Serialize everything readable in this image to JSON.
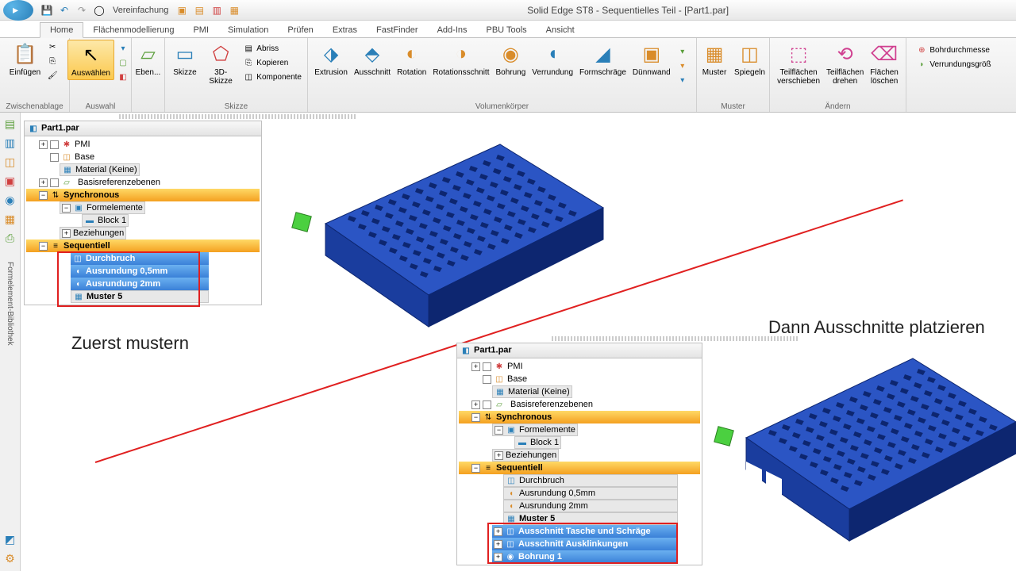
{
  "title": "Solid Edge ST8 - Sequentielles Teil - [Part1.par]",
  "qat": {
    "vereinfachung": "Vereinfachung"
  },
  "tabs": [
    "Home",
    "Flächenmodellierung",
    "PMI",
    "Simulation",
    "Prüfen",
    "Extras",
    "FastFinder",
    "Add-Ins",
    "PBU Tools",
    "Ansicht"
  ],
  "ribbon": {
    "einfuegen": "Einfügen",
    "zwischenablage": "Zwischenablage",
    "auswaehlen": "Auswählen",
    "auswahl": "Auswahl",
    "eben": "Eben...",
    "skizze": "Skizze",
    "skizze3d": "3D-Skizze",
    "abriss": "Abriss",
    "kopieren": "Kopieren",
    "komponente": "Komponente",
    "skizze_grp": "Skizze",
    "extrusion": "Extrusion",
    "ausschnitt": "Ausschnitt",
    "rotation": "Rotation",
    "rotationsschnitt": "Rotationsschnitt",
    "bohrung": "Bohrung",
    "verrundung": "Verrundung",
    "formschraege": "Formschräge",
    "duennwand": "Dünnwand",
    "volumenkoerper": "Volumenkörper",
    "muster": "Muster",
    "spiegeln": "Spiegeln",
    "muster_grp": "Muster",
    "teilflaechen_verschieben": "Teilflächen\nverschieben",
    "teilflaechen_drehen": "Teilflächen\ndrehen",
    "flaechen_loeschen": "Flächen\nlöschen",
    "aendern": "Ändern",
    "bohrdurchmesse": "Bohrdurchmesse",
    "verrundungsgroe": "Verrundungsgröß"
  },
  "tree1": {
    "root": "Part1.par",
    "pmi": "PMI",
    "base": "Base",
    "material": "Material (Keine)",
    "basisref": "Basisreferenzebenen",
    "synchronous": "Synchronous",
    "formelemente": "Formelemente",
    "block1": "Block 1",
    "beziehungen": "Beziehungen",
    "sequentiell": "Sequentiell",
    "durchbruch": "Durchbruch",
    "ausrundung05": "Ausrundung 0,5mm",
    "ausrundung2": "Ausrundung 2mm",
    "muster5": "Muster 5"
  },
  "tree2": {
    "root": "Part1.par",
    "pmi": "PMI",
    "base": "Base",
    "material": "Material (Keine)",
    "basisref": "Basisreferenzebenen",
    "synchronous": "Synchronous",
    "formelemente": "Formelemente",
    "block1": "Block 1",
    "beziehungen": "Beziehungen",
    "sequentiell": "Sequentiell",
    "durchbruch": "Durchbruch",
    "ausrundung05": "Ausrundung 0,5mm",
    "ausrundung2": "Ausrundung 2mm",
    "muster5": "Muster 5",
    "ausschnitt_tasche": "Ausschnitt Tasche und Schräge",
    "ausschnitt_ausklinkungen": "Ausschnitt Ausklinkungen",
    "bohrung1": "Bohrung 1"
  },
  "annot": {
    "zuerst": "Zuerst mustern",
    "dann": "Dann Ausschnitte platzieren"
  },
  "colors": {
    "part_blue": "#1a3d9e",
    "part_blue_dark": "#0d2670",
    "part_top": "#2b55c4",
    "green_cube": "#4bd040",
    "red": "#e02020",
    "orange1": "#ffd966",
    "orange2": "#f4a020",
    "sel_blue1": "#6bb0f0",
    "sel_blue2": "#3a80d8"
  }
}
